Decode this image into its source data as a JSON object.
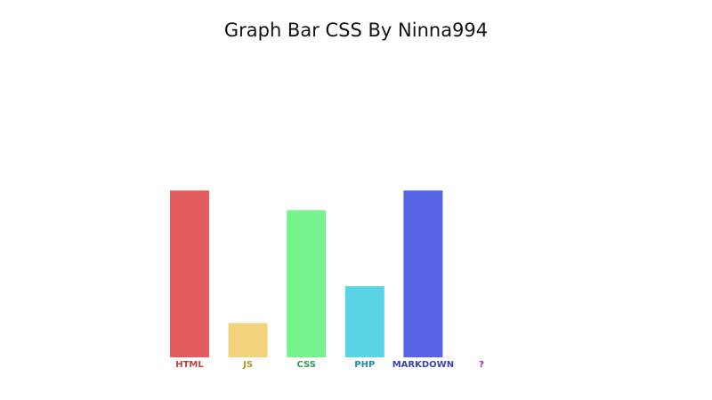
{
  "title": "Graph Bar CSS By Ninna994",
  "chart_data": {
    "type": "bar",
    "title": "Graph Bar CSS By Ninna994",
    "xlabel": "",
    "ylabel": "",
    "categories": [
      "HTML",
      "JS",
      "CSS",
      "PHP",
      "MARKDOWN",
      "?"
    ],
    "values": [
      68,
      14,
      60,
      29,
      68,
      0
    ],
    "ylim": [
      0,
      100
    ],
    "grid": false,
    "legend": "none",
    "colors": [
      "#e35d5e",
      "#f2d27a",
      "#76f38d",
      "#59d3e5",
      "#5864e6",
      "#7a2fb3"
    ],
    "label_colors": [
      "#c44040",
      "#b9922a",
      "#2e9e4a",
      "#1b8ea1",
      "#3a43b3",
      "#7a2fb3"
    ]
  }
}
